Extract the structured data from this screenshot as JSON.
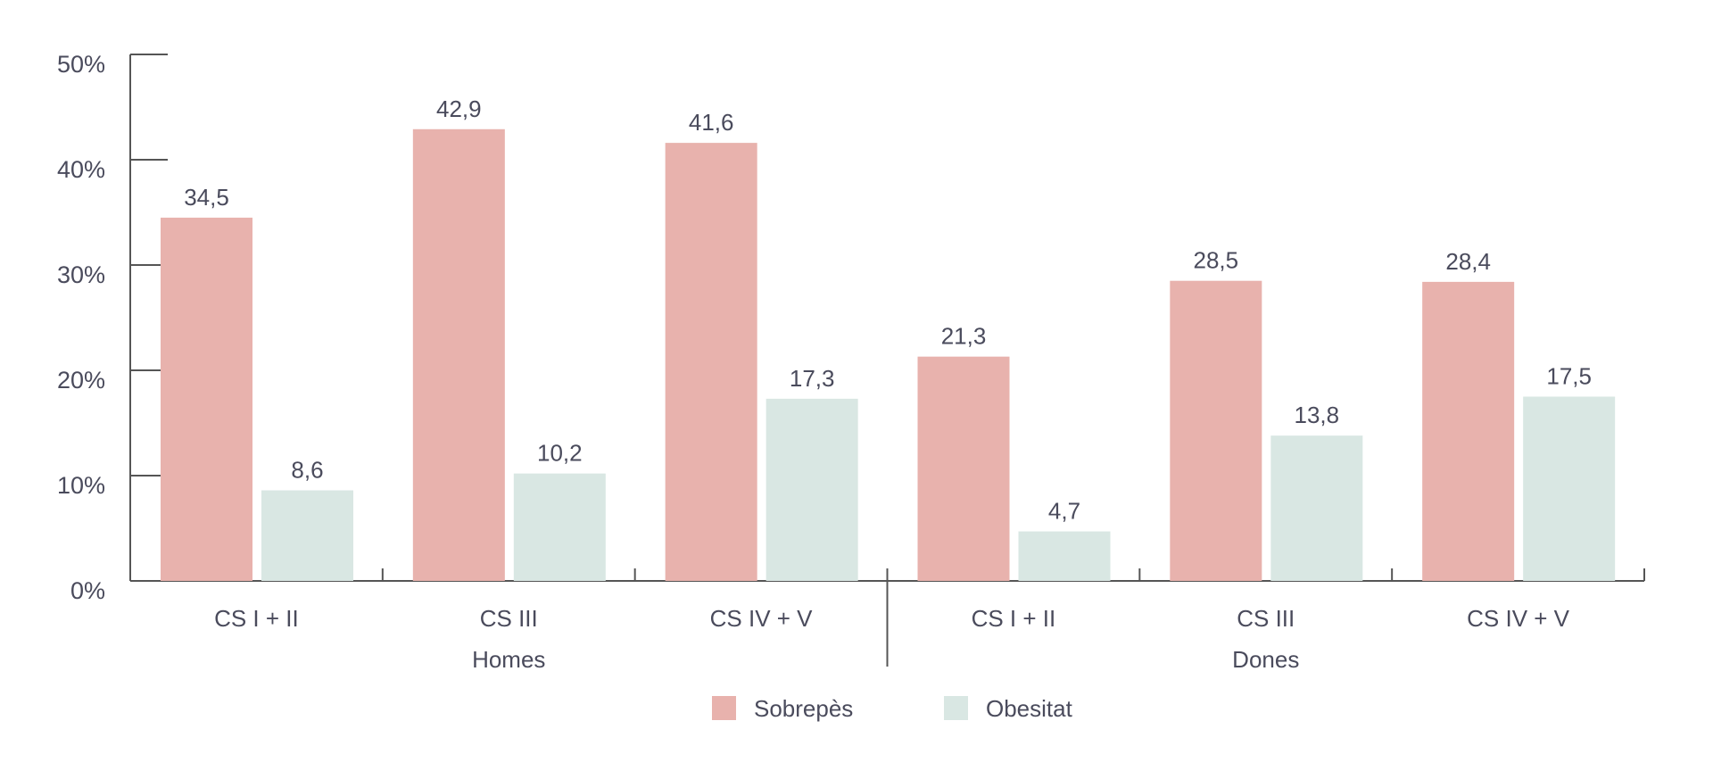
{
  "chart_data": {
    "type": "bar",
    "groups": [
      {
        "label": "Homes",
        "categories": [
          "CS I + II",
          "CS III",
          "CS IV + V"
        ]
      },
      {
        "label": "Dones",
        "categories": [
          "CS I + II",
          "CS III",
          "CS IV + V"
        ]
      }
    ],
    "series": [
      {
        "name": "Sobrepès",
        "color": "#e8b2ad",
        "values": [
          34.5,
          42.9,
          41.6,
          21.3,
          28.5,
          28.4
        ],
        "labels": [
          "34,5",
          "42,9",
          "41,6",
          "21,3",
          "28,5",
          "28,4"
        ]
      },
      {
        "name": "Obesitat",
        "color": "#d9e7e3",
        "values": [
          8.6,
          10.2,
          17.3,
          4.7,
          13.8,
          17.5
        ],
        "labels": [
          "8,6",
          "10,2",
          "17,3",
          "4,7",
          "13,8",
          "17,5"
        ]
      }
    ],
    "yticks": [
      "0%",
      "10%",
      "20%",
      "30%",
      "40%",
      "50%"
    ],
    "ylim": [
      0,
      50
    ],
    "grid": false,
    "legend": "bottom"
  }
}
